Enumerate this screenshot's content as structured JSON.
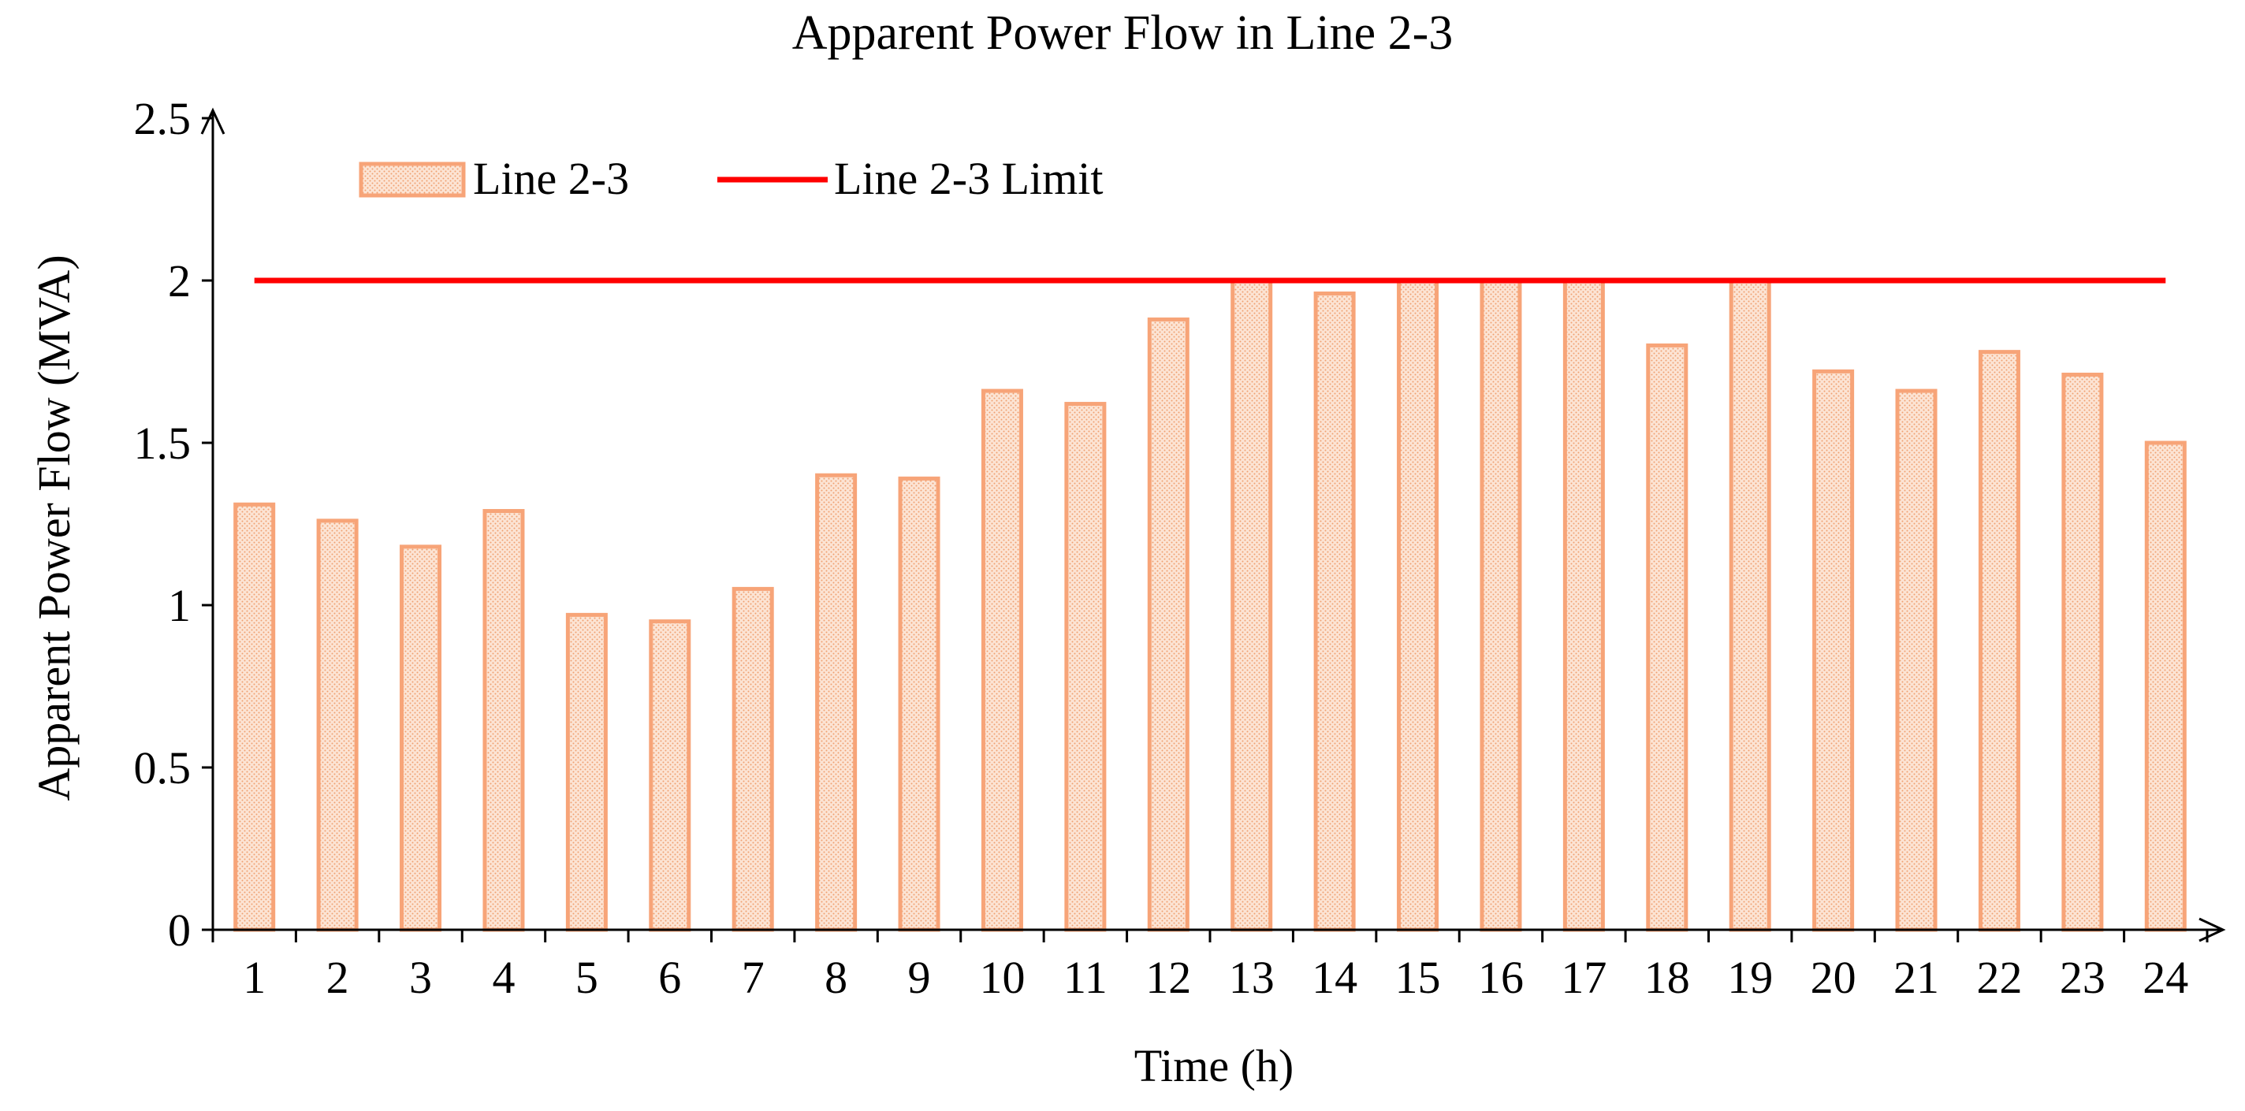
{
  "colors": {
    "bar_fill": "#fce4d4",
    "bar_dots": "#f0a070",
    "bar_stroke": "#f7a478",
    "limit_line": "#ff0000",
    "axis": "#000000"
  },
  "chart_data": {
    "type": "bar",
    "title": "Apparent Power Flow in Line 2-3",
    "xlabel": "Time (h)",
    "ylabel": "Apparent  Power Flow (MVA)",
    "ylim": [
      0,
      2.5
    ],
    "yticks": [
      "0",
      "0.5",
      "1",
      "1.5",
      "2",
      "2.5"
    ],
    "categories": [
      "1",
      "2",
      "3",
      "4",
      "5",
      "6",
      "7",
      "8",
      "9",
      "10",
      "11",
      "12",
      "13",
      "14",
      "15",
      "16",
      "17",
      "18",
      "19",
      "20",
      "21",
      "22",
      "23",
      "24"
    ],
    "series": [
      {
        "name": "Line 2-3",
        "type": "bar",
        "values": [
          1.31,
          1.26,
          1.18,
          1.29,
          0.97,
          0.95,
          1.05,
          1.4,
          1.39,
          1.66,
          1.62,
          1.88,
          2.0,
          1.96,
          2.0,
          2.0,
          2.0,
          1.8,
          2.0,
          1.72,
          1.66,
          1.78,
          1.71,
          1.5
        ]
      },
      {
        "name": "Line 2-3 Limit",
        "type": "line",
        "value": 2.0
      }
    ],
    "legend": {
      "position": "top-left"
    },
    "grid": false
  }
}
